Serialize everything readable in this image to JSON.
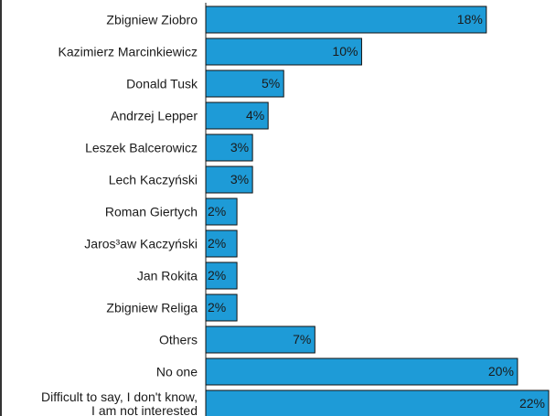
{
  "chart_data": {
    "type": "bar",
    "orientation": "horizontal",
    "categories": [
      "Zbigniew Ziobro",
      "Kazimierz Marcinkiewicz",
      "Donald Tusk",
      "Andrzej Lepper",
      "Leszek Balcerowicz",
      "Lech Kaczyński",
      "Roman Giertych",
      "Jaros³aw Kaczyński",
      "Jan Rokita",
      "Zbigniew Religa",
      "Others",
      "No one",
      "Difficult to say, I don't know,\nI am not interested"
    ],
    "values": [
      18,
      10,
      5,
      4,
      3,
      3,
      2,
      2,
      2,
      2,
      7,
      20,
      22
    ],
    "value_labels": [
      "18%",
      "10%",
      "5%",
      "4%",
      "3%",
      "3%",
      "2%",
      "2%",
      "2%",
      "2%",
      "7%",
      "20%",
      "22%"
    ],
    "color": "#1e9bd7"
  }
}
